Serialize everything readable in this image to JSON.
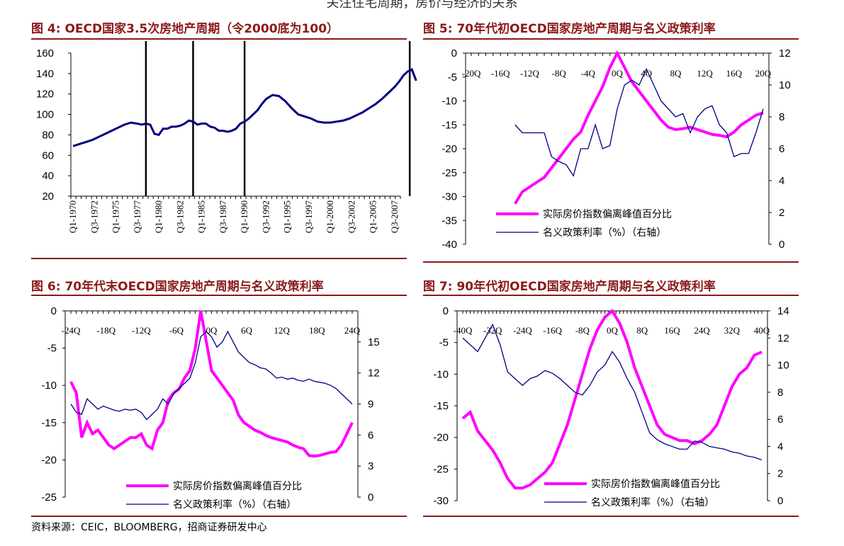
{
  "page": {
    "top_cut_text": "关注住宅周期，房价与经济的关系",
    "source": "资料来源：CEIC，BLOOMBERG，招商证券研发中心",
    "colors": {
      "title": "#8b1a1a",
      "series_primary": "#ff00ff",
      "series_secondary": "#000080",
      "axis": "#000000"
    }
  },
  "chart_data": [
    {
      "id": "fig4",
      "type": "line",
      "title": "图 4: OECD国家3.5次房地产周期（令2000底为100）",
      "ylim": [
        20,
        160
      ],
      "yticks": [
        20,
        40,
        60,
        80,
        100,
        120,
        140,
        160
      ],
      "categories": [
        "Q1-1970",
        "Q3-1972",
        "Q1-1975",
        "Q3-1977",
        "Q1-1980",
        "Q3-1982",
        "Q1-1985",
        "Q3-1987",
        "Q1-1990",
        "Q3-1992",
        "Q1-1995",
        "Q3-1997",
        "Q1-2000",
        "Q3-2002",
        "Q1-2005",
        "Q3-2007"
      ],
      "peak_markers_index": [
        3.4,
        5.6,
        8.0,
        15.7
      ],
      "series": [
        {
          "name": "OECD房价指数",
          "color": "#000080",
          "x": [
            0,
            0.3,
            0.6,
            0.9,
            1.2,
            1.5,
            1.8,
            2.1,
            2.4,
            2.7,
            3.0,
            3.2,
            3.4,
            3.6,
            3.8,
            4.0,
            4.2,
            4.4,
            4.6,
            4.8,
            5.0,
            5.2,
            5.4,
            5.6,
            5.8,
            6.0,
            6.2,
            6.4,
            6.6,
            6.8,
            7.0,
            7.2,
            7.4,
            7.6,
            7.8,
            8.0,
            8.2,
            8.4,
            8.6,
            8.8,
            9.0,
            9.3,
            9.6,
            9.9,
            10.2,
            10.5,
            10.8,
            11.1,
            11.4,
            11.7,
            12.0,
            12.3,
            12.6,
            12.9,
            13.2,
            13.5,
            13.8,
            14.1,
            14.4,
            14.7,
            15.0,
            15.2,
            15.4,
            15.6,
            15.8,
            16.0
          ],
          "values": [
            69,
            71,
            73,
            75,
            78,
            81,
            84,
            87,
            90,
            92,
            91,
            90,
            91,
            90,
            81,
            80,
            86,
            86,
            88,
            88,
            89,
            91,
            94,
            93,
            90,
            91,
            91,
            88,
            87,
            84,
            84,
            83,
            84,
            86,
            91,
            93,
            96,
            100,
            104,
            110,
            115,
            119,
            118,
            113,
            106,
            100,
            98,
            96,
            93,
            92,
            92,
            93,
            94,
            96,
            99,
            102,
            106,
            110,
            115,
            121,
            127,
            132,
            138,
            142,
            144,
            133
          ]
        }
      ]
    },
    {
      "id": "fig5",
      "type": "line",
      "title": "图 5: 70年代初OECD国家房地产周期与名义政策利率",
      "xlim": [
        -20,
        20
      ],
      "xticks": [
        "-20Q",
        "-16Q",
        "-12Q",
        "-8Q",
        "-4Q",
        "0Q",
        "4Q",
        "8Q",
        "12Q",
        "16Q",
        "20Q"
      ],
      "ylim": [
        -40,
        0
      ],
      "yticks": [
        0,
        -5,
        -10,
        -15,
        -20,
        -25,
        -30,
        -35,
        -40
      ],
      "y2lim": [
        0,
        12
      ],
      "y2ticks": [
        0,
        2,
        4,
        6,
        8,
        10,
        12
      ],
      "legend": [
        "实际房价指数偏离峰值百分比",
        "名义政策利率（%）（右轴）"
      ],
      "series": [
        {
          "name": "实际房价指数偏离峰值百分比",
          "axis": "left",
          "color": "#ff00ff",
          "x": [
            -14,
            -13,
            -12,
            -11,
            -10,
            -9,
            -8,
            -7,
            -6,
            -5,
            -4,
            -3,
            -2,
            -1,
            0,
            1,
            2,
            3,
            4,
            5,
            6,
            7,
            8,
            9,
            10,
            11,
            12,
            13,
            14,
            15,
            16,
            17,
            18,
            19,
            20
          ],
          "values": [
            -31.5,
            -29,
            -28,
            -27,
            -26,
            -24,
            -22,
            -20,
            -18,
            -16.5,
            -13,
            -10,
            -7,
            -3,
            0,
            -3,
            -6,
            -8,
            -10,
            -12,
            -14,
            -15.5,
            -16,
            -15.8,
            -15.5,
            -16,
            -16.5,
            -17,
            -17.2,
            -17.5,
            -16.5,
            -15,
            -14,
            -13,
            -12.5
          ]
        },
        {
          "name": "名义政策利率（%）（右轴）",
          "axis": "right",
          "color": "#000080",
          "x": [
            -14,
            -13,
            -12,
            -11,
            -10,
            -9,
            -8,
            -7,
            -6,
            -5,
            -4,
            -3,
            -2,
            -1,
            0,
            1,
            2,
            3,
            4,
            5,
            6,
            7,
            8,
            9,
            10,
            11,
            12,
            13,
            14,
            15,
            16,
            17,
            18,
            19,
            20
          ],
          "values": [
            7.5,
            7,
            7,
            7,
            7,
            5.5,
            5.2,
            5,
            4.3,
            6,
            6,
            7.5,
            6,
            6.2,
            8.5,
            10,
            10.3,
            10,
            11,
            10,
            9,
            8.5,
            8,
            8.2,
            7,
            8,
            8.5,
            8.7,
            7.5,
            7,
            5.5,
            5.7,
            5.7,
            7,
            8.5
          ]
        }
      ]
    },
    {
      "id": "fig6",
      "type": "line",
      "title": "图 6: 70年代末OECD国家房地产周期与名义政策利率",
      "xlim": [
        -24,
        28
      ],
      "xticks": [
        "-24Q",
        "-18Q",
        "-12Q",
        "-6Q",
        "0Q",
        "6Q",
        "12Q",
        "18Q",
        "24Q"
      ],
      "ylim": [
        -25,
        0
      ],
      "yticks": [
        0,
        -5,
        -10,
        -15,
        -20,
        -25
      ],
      "y2lim": [
        0,
        18
      ],
      "y2ticks": [
        0,
        3,
        6,
        9,
        12,
        15
      ],
      "legend": [
        "实际房价指数偏离峰值百分比",
        "名义政策利率（%）（右轴）"
      ],
      "series": [
        {
          "name": "实际房价指数偏离峰值百分比",
          "axis": "left",
          "color": "#ff00ff",
          "x": [
            -24,
            -23,
            -22,
            -21,
            -20,
            -19,
            -18,
            -17,
            -16,
            -15,
            -14,
            -13,
            -12,
            -11,
            -10,
            -9,
            -8,
            -7,
            -6,
            -5,
            -4,
            -3,
            -2,
            -1,
            0,
            1,
            2,
            3,
            4,
            5,
            6,
            7,
            8,
            9,
            10,
            11,
            12,
            13,
            14,
            15,
            16,
            17,
            18,
            19,
            20,
            21,
            22,
            23,
            24,
            25,
            26,
            27,
            28
          ],
          "values": [
            -9.5,
            -11,
            -17,
            -15,
            -16.5,
            -16,
            -17,
            -18,
            -18.5,
            -18,
            -17.5,
            -17,
            -17,
            -16.5,
            -18,
            -18.5,
            -16,
            -15,
            -12,
            -11,
            -10.5,
            -9,
            -8,
            -5,
            0,
            -4,
            -8,
            -9,
            -10,
            -11,
            -12,
            -14,
            -15,
            -15.5,
            -16,
            -16.3,
            -16.7,
            -17,
            -17.2,
            -17.4,
            -17.6,
            -18,
            -18.3,
            -18.5,
            -19.4,
            -19.5,
            -19.4,
            -19.2,
            -19,
            -18.9,
            -18,
            -16.5,
            -15
          ]
        },
        {
          "name": "名义政策利率（%）（右轴）",
          "axis": "right",
          "color": "#000080",
          "x": [
            -24,
            -23,
            -22,
            -21,
            -20,
            -19,
            -18,
            -17,
            -16,
            -15,
            -14,
            -13,
            -12,
            -11,
            -10,
            -9,
            -8,
            -7,
            -6,
            -5,
            -4,
            -3,
            -2,
            -1,
            0,
            1,
            2,
            3,
            4,
            5,
            6,
            7,
            8,
            9,
            10,
            11,
            12,
            13,
            14,
            15,
            16,
            17,
            18,
            19,
            20,
            21,
            22,
            23,
            24,
            25,
            26,
            27,
            28
          ],
          "values": [
            9,
            8.2,
            8,
            9.5,
            9,
            8.5,
            8.8,
            8.6,
            8.4,
            8.3,
            8.5,
            8.4,
            8.5,
            8.2,
            7.5,
            8,
            8.5,
            9.5,
            9,
            10,
            10.5,
            11,
            11.5,
            13,
            15.5,
            16,
            15.5,
            14.5,
            15,
            16,
            15,
            14,
            13.5,
            13,
            12.8,
            12.5,
            12.4,
            12,
            11.5,
            11.6,
            11.4,
            11.5,
            11.3,
            11.2,
            11.4,
            11.2,
            11.1,
            11,
            10.8,
            10.5,
            10,
            9.5,
            9
          ]
        }
      ]
    },
    {
      "id": "fig7",
      "type": "line",
      "title": "图 7: 90年代初OECD国家房地产周期与名义政策利率",
      "xlim": [
        -40,
        40
      ],
      "xticks": [
        "-40Q",
        "-32Q",
        "-24Q",
        "-16Q",
        "-8Q",
        "0Q",
        "8Q",
        "16Q",
        "24Q",
        "32Q",
        "40Q"
      ],
      "ylim": [
        -30,
        0
      ],
      "yticks": [
        0,
        -5,
        -10,
        -15,
        -20,
        -25,
        -30
      ],
      "y2lim": [
        0,
        14
      ],
      "y2ticks": [
        0,
        2,
        4,
        6,
        8,
        10,
        12,
        14
      ],
      "legend": [
        "实际房价指数偏离峰值百分比",
        "名义政策利率（%）（右轴）"
      ],
      "series": [
        {
          "name": "实际房价指数偏离峰值百分比",
          "axis": "left",
          "color": "#ff00ff",
          "x": [
            -40,
            -38,
            -36,
            -34,
            -32,
            -30,
            -28,
            -26,
            -24,
            -22,
            -20,
            -18,
            -16,
            -14,
            -12,
            -10,
            -8,
            -6,
            -4,
            -2,
            0,
            2,
            4,
            6,
            8,
            10,
            12,
            14,
            16,
            18,
            20,
            22,
            24,
            26,
            28,
            30,
            32,
            34,
            36,
            38,
            40
          ],
          "values": [
            -17,
            -16,
            -19,
            -20.5,
            -22,
            -24,
            -26.5,
            -28,
            -28,
            -27.5,
            -26.5,
            -25.5,
            -24,
            -21,
            -18,
            -14,
            -10,
            -6,
            -3,
            -1,
            0,
            -2,
            -5,
            -9,
            -12,
            -15,
            -18,
            -19.5,
            -20,
            -20.5,
            -20.5,
            -21,
            -20.5,
            -19.5,
            -18,
            -15,
            -12,
            -10,
            -9,
            -7,
            -6.5
          ]
        },
        {
          "name": "名义政策利率（%）（右轴）",
          "axis": "right",
          "color": "#000080",
          "x": [
            -40,
            -38,
            -36,
            -34,
            -32,
            -30,
            -28,
            -26,
            -24,
            -22,
            -20,
            -18,
            -16,
            -14,
            -12,
            -10,
            -8,
            -6,
            -4,
            -2,
            0,
            2,
            4,
            6,
            8,
            10,
            12,
            14,
            16,
            18,
            20,
            22,
            24,
            26,
            28,
            30,
            32,
            34,
            36,
            38,
            40
          ],
          "values": [
            12,
            11.5,
            11,
            12,
            13,
            11.5,
            9.5,
            9,
            8.5,
            9,
            9.2,
            9.6,
            9.4,
            9.0,
            8.5,
            8,
            7.8,
            8.5,
            9.5,
            10,
            11,
            10.2,
            9,
            8,
            6.5,
            5,
            4.5,
            4.2,
            4.0,
            3.8,
            3.8,
            4.4,
            4.3,
            4.0,
            3.9,
            3.8,
            3.6,
            3.5,
            3.3,
            3.2,
            3.0
          ]
        }
      ]
    }
  ]
}
